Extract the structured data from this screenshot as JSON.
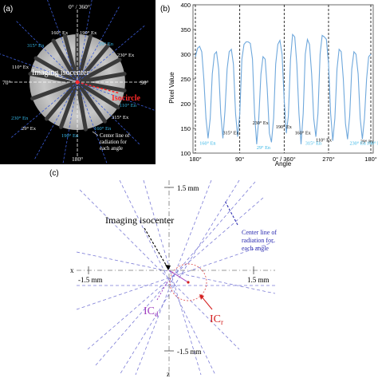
{
  "panel_a": {
    "tag": "(a)",
    "top_label": "0° / 360°",
    "bottom_label": "180°",
    "left_label": "70°",
    "right_label": "90°",
    "imaging_label": "Imaging isocenter",
    "isocircle_label": "Isocircle",
    "center_line_label_1": "Center line of",
    "center_line_label_2": "radiation for",
    "center_line_label_3": "each angle",
    "beam_labels_white": [
      "160° Ex",
      "190° Ex",
      "230° Ex",
      "110° Ex",
      "315° Ex",
      "29° Ex"
    ],
    "beam_labels_cyan": [
      "315° En",
      "29° En",
      "110° En",
      "230° En",
      "190° En",
      "160° En"
    ],
    "colors": {
      "background": "#000000",
      "ex_label": "#ffffff",
      "en_label": "#35b6e6",
      "isocircle": "#ff2a2a",
      "beam_line": "#3a5bd6"
    }
  },
  "panel_b": {
    "tag": "(b)",
    "chart_data": {
      "type": "line",
      "ylabel": "Pixel Value",
      "xlabel": "Angle",
      "ylim": [
        100,
        400
      ],
      "yticks": [
        100,
        150,
        200,
        250,
        300,
        350,
        400
      ],
      "xtick_labels": [
        "180°",
        "90°",
        "0° / 360°",
        "270°",
        "180°"
      ],
      "series": [
        {
          "values": [
            [
              0,
              295
            ],
            [
              1,
              312
            ],
            [
              2,
              316
            ],
            [
              3,
              305
            ],
            [
              4,
              250
            ],
            [
              5,
              170
            ],
            [
              6,
              130
            ],
            [
              7,
              170
            ],
            [
              8,
              260
            ],
            [
              9,
              300
            ],
            [
              10,
              305
            ],
            [
              11,
              270
            ],
            [
              12,
              180
            ],
            [
              13,
              130
            ],
            [
              14,
              185
            ],
            [
              15,
              270
            ],
            [
              16,
              305
            ],
            [
              17,
              310
            ],
            [
              18,
              280
            ],
            [
              19,
              180
            ],
            [
              20,
              133
            ],
            [
              21,
              180
            ],
            [
              22,
              290
            ],
            [
              23,
              320
            ],
            [
              24,
              325
            ],
            [
              25,
              325
            ],
            [
              26,
              322
            ],
            [
              27,
              290
            ],
            [
              28,
              180
            ],
            [
              29,
              118
            ],
            [
              30,
              170
            ],
            [
              31,
              260
            ],
            [
              32,
              295
            ],
            [
              33,
              290
            ],
            [
              34,
              230
            ],
            [
              35,
              140
            ],
            [
              36,
              122
            ],
            [
              37,
              170
            ],
            [
              38,
              280
            ],
            [
              39,
              320
            ],
            [
              40,
              328
            ],
            [
              41,
              300
            ],
            [
              42,
              210
            ],
            [
              43,
              140
            ],
            [
              44,
              175
            ],
            [
              45,
              290
            ],
            [
              46,
              340
            ],
            [
              47,
              335
            ],
            [
              48,
              280
            ],
            [
              49,
              180
            ],
            [
              50,
              118
            ],
            [
              51,
              180
            ],
            [
              52,
              300
            ],
            [
              53,
              330
            ],
            [
              54,
              320
            ],
            [
              55,
              260
            ],
            [
              56,
              170
            ],
            [
              57,
              133
            ],
            [
              58,
              180
            ],
            [
              59,
              300
            ],
            [
              60,
              338
            ],
            [
              61,
              335
            ],
            [
              62,
              330
            ],
            [
              63,
              280
            ],
            [
              64,
              180
            ],
            [
              65,
              125
            ],
            [
              66,
              170
            ],
            [
              67,
              270
            ],
            [
              68,
              310
            ],
            [
              69,
              305
            ],
            [
              70,
              250
            ],
            [
              71,
              160
            ],
            [
              72,
              128
            ],
            [
              73,
              175
            ],
            [
              74,
              270
            ],
            [
              75,
              305
            ],
            [
              76,
              300
            ],
            [
              77,
              260
            ],
            [
              78,
              170
            ],
            [
              79,
              128
            ],
            [
              80,
              170
            ],
            [
              81,
              250
            ],
            [
              82,
              295
            ],
            [
              83,
              300
            ]
          ]
        }
      ],
      "annotations_black": [
        "315° Ex",
        "230° Ex",
        "190° Ex",
        "160° Ex",
        "110° Ex",
        "29° Ex"
      ],
      "annotations_cyan": [
        "160° En",
        "29° En",
        "315° En",
        "230° En",
        "190° En"
      ],
      "vlines": [
        0,
        21,
        42,
        63,
        83
      ],
      "line_color": "#6fa8dc",
      "grid": false
    }
  },
  "panel_c": {
    "tag": "(c)",
    "top_axis_label": "1.5 mm",
    "bottom_axis_label": "-1.5 mm",
    "left_axis_label": "-1.5 mm",
    "right_axis_label": "1.5 mm",
    "x_axis_letter": "x",
    "z_axis_letter": "z",
    "imaging_label": "Imaging isocenter",
    "center_line_label_1": "Center line of",
    "center_line_label_2": "radiation for",
    "center_line_label_3": "each angle",
    "icd_main": "IC",
    "icd_sub": "d",
    "icr_main": "IC",
    "icr_sub": "r",
    "colors": {
      "beam_line": "#7b7bd6",
      "icd": "#a040c0",
      "icr": "#d42020",
      "label_blue": "#2b2bb0"
    }
  }
}
